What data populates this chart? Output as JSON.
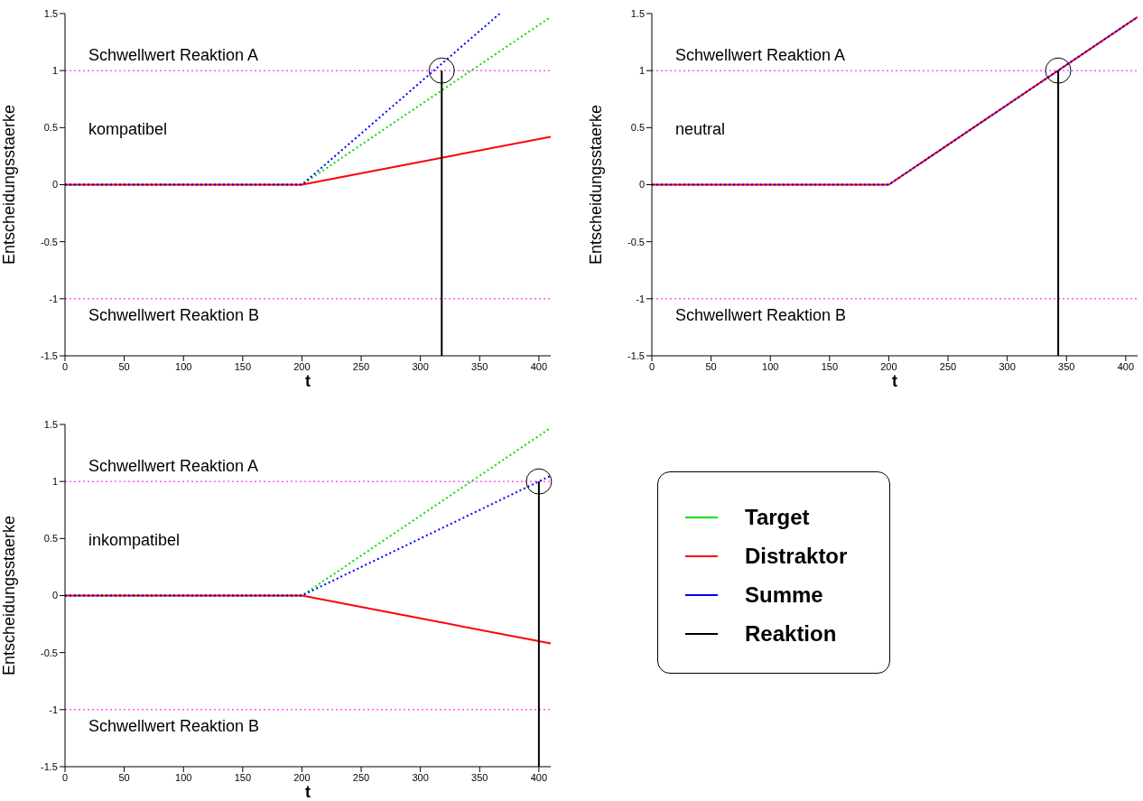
{
  "chart_data": [
    {
      "type": "line",
      "xlabel": "t",
      "ylabel": "Entscheidungsstaerke",
      "annotations": [
        "kompatibel"
      ],
      "xlim": [
        0,
        410
      ],
      "xticks": [
        0,
        50,
        100,
        150,
        200,
        250,
        300,
        350,
        400
      ],
      "ylim": [
        -1.5,
        1.5
      ],
      "yticks": [
        -1.5,
        -1,
        -0.5,
        0,
        0.5,
        1,
        1.5
      ],
      "ref_lines": [
        {
          "axis": "y",
          "value": 1,
          "label": "Schwellwert Reaktion A",
          "color": "#ff00ff",
          "line_style": "dotted"
        },
        {
          "axis": "y",
          "value": -1,
          "label": "Schwellwert Reaktion B",
          "color": "#ff00ff",
          "line_style": "dotted"
        }
      ],
      "series": [
        {
          "color": "#00e000",
          "line_style": "dotted",
          "x": [
            0,
            200,
            410
          ],
          "values": [
            0,
            0,
            1.47
          ]
        },
        {
          "color": "#ff0000",
          "line_style": "solid",
          "x": [
            0,
            200,
            410
          ],
          "values": [
            0,
            0,
            0.42
          ]
        },
        {
          "color": "#0000ff",
          "line_style": "dotted",
          "x": [
            0,
            200,
            367
          ],
          "values": [
            0,
            0,
            1.5
          ]
        },
        {
          "color": "#000000",
          "line_style": "solid",
          "x": [
            318,
            318
          ],
          "values": [
            -1.5,
            1.0
          ]
        }
      ]
    },
    {
      "type": "line",
      "xlabel": "t",
      "ylabel": "Entscheidungsstaerke",
      "annotations": [
        "neutral"
      ],
      "xlim": [
        0,
        410
      ],
      "xticks": [
        0,
        50,
        100,
        150,
        200,
        250,
        300,
        350,
        400
      ],
      "ylim": [
        -1.5,
        1.5
      ],
      "yticks": [
        -1.5,
        -1,
        -0.5,
        0,
        0.5,
        1,
        1.5
      ],
      "ref_lines": [
        {
          "axis": "y",
          "value": 1,
          "label": "Schwellwert Reaktion A",
          "color": "#ff00ff",
          "line_style": "dotted"
        },
        {
          "axis": "y",
          "value": -1,
          "label": "Schwellwert Reaktion B",
          "color": "#ff00ff",
          "line_style": "dotted"
        }
      ],
      "series": [
        {
          "color": "#ff0000",
          "line_style": "solid",
          "x": [
            0,
            200,
            410
          ],
          "values": [
            0,
            0,
            1.47
          ]
        },
        {
          "color": "#0000ff",
          "line_style": "dotted",
          "x": [
            0,
            200,
            410
          ],
          "values": [
            0,
            0,
            1.47
          ]
        },
        {
          "color": "#000000",
          "line_style": "solid",
          "x": [
            343,
            343
          ],
          "values": [
            -1.5,
            1.0
          ]
        }
      ]
    },
    {
      "type": "line",
      "xlabel": "t",
      "ylabel": "Entscheidungsstaerke",
      "annotations": [
        "inkompatibel"
      ],
      "xlim": [
        0,
        410
      ],
      "xticks": [
        0,
        50,
        100,
        150,
        200,
        250,
        300,
        350,
        400
      ],
      "ylim": [
        -1.5,
        1.5
      ],
      "yticks": [
        -1.5,
        -1,
        -0.5,
        0,
        0.5,
        1,
        1.5
      ],
      "legend": "right",
      "ref_lines": [
        {
          "axis": "y",
          "value": 1,
          "label": "Schwellwert Reaktion A",
          "color": "#ff00ff",
          "line_style": "dotted"
        },
        {
          "axis": "y",
          "value": -1,
          "label": "Schwellwert Reaktion B",
          "color": "#ff00ff",
          "line_style": "dotted"
        }
      ],
      "series": [
        {
          "name": "Target",
          "color": "#00e000",
          "line_style": "dotted",
          "x": [
            0,
            200,
            410
          ],
          "values": [
            0,
            0,
            1.47
          ]
        },
        {
          "name": "Distraktor",
          "color": "#ff0000",
          "line_style": "solid",
          "x": [
            0,
            200,
            410
          ],
          "values": [
            0,
            0,
            -0.42
          ]
        },
        {
          "name": "Summe",
          "color": "#0000ff",
          "line_style": "dotted",
          "x": [
            0,
            200,
            410
          ],
          "values": [
            0,
            0,
            1.05
          ]
        },
        {
          "name": "Reaktion",
          "color": "#000000",
          "line_style": "solid",
          "x": [
            400,
            400
          ],
          "values": [
            -1.5,
            1.0
          ]
        }
      ]
    }
  ]
}
